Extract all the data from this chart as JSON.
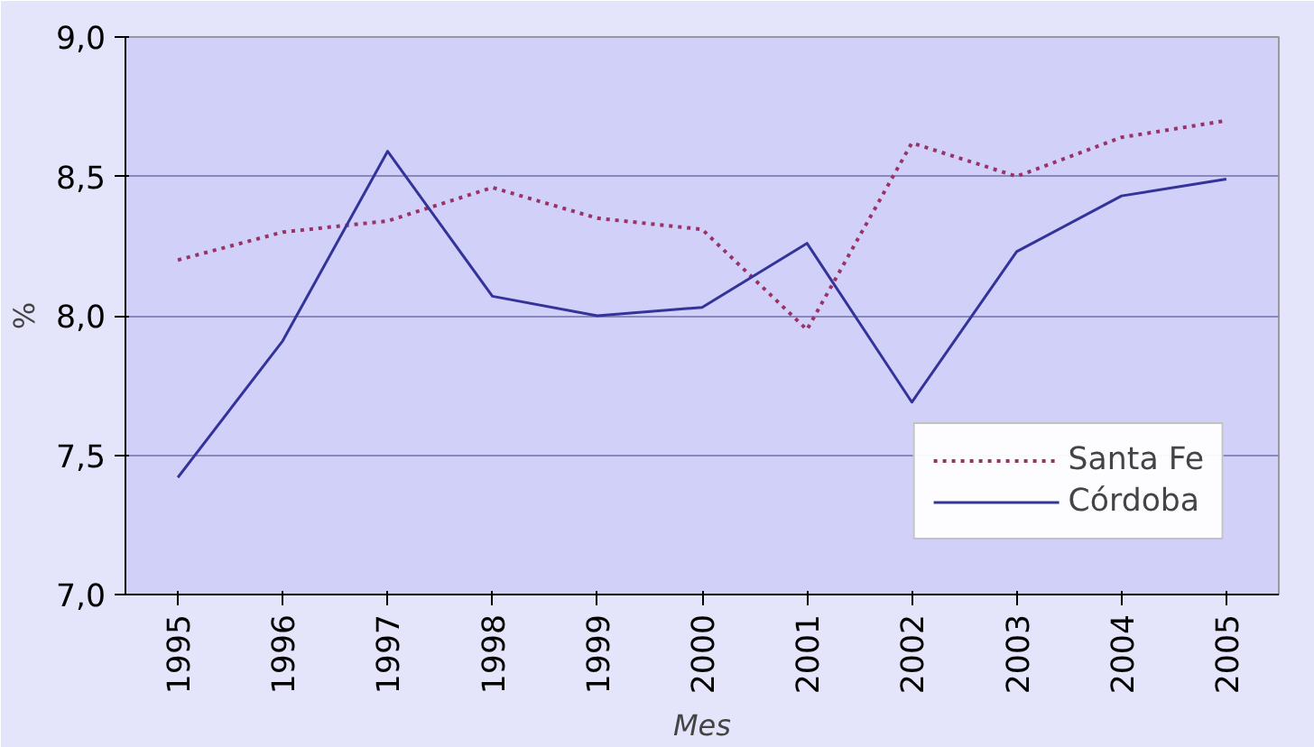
{
  "chart_data": {
    "type": "line",
    "ylabel": "%",
    "xlabel": "Mes",
    "categories": [
      "1995",
      "1996",
      "1997",
      "1998",
      "1999",
      "2000",
      "2001",
      "2002",
      "2003",
      "2004",
      "2005"
    ],
    "series": [
      {
        "name": "Santa Fe",
        "color": "#993366",
        "line_style": "dotted",
        "values": [
          8.2,
          8.3,
          8.34,
          8.46,
          8.35,
          8.31,
          7.95,
          8.62,
          8.5,
          8.64,
          8.7
        ]
      },
      {
        "name": "Córdoba",
        "color": "#333399",
        "line_style": "solid",
        "values": [
          7.42,
          7.91,
          8.59,
          8.07,
          8.0,
          8.03,
          8.26,
          7.69,
          8.23,
          8.43,
          8.49
        ]
      }
    ],
    "ylim": [
      7.0,
      9.0
    ],
    "yticks": [
      {
        "value": 7.0,
        "label": "7,0"
      },
      {
        "value": 7.5,
        "label": "7,5"
      },
      {
        "value": 8.0,
        "label": "8,0"
      },
      {
        "value": 8.5,
        "label": "8,5"
      },
      {
        "value": 9.0,
        "label": "9,0"
      }
    ],
    "grid": "y",
    "legend": "bottom right",
    "marker": "none"
  }
}
